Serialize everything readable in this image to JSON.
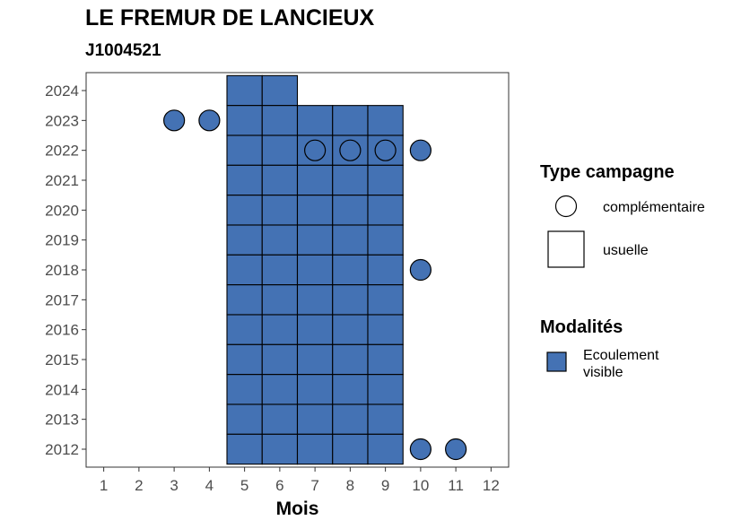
{
  "chart_data": {
    "type": "heatmap",
    "title": "LE FREMUR DE LANCIEUX",
    "subtitle": "J1004521",
    "xlabel": "Mois",
    "ylabel": "",
    "x_ticks": [
      "1",
      "2",
      "3",
      "4",
      "5",
      "6",
      "7",
      "8",
      "9",
      "10",
      "11",
      "12"
    ],
    "y_ticks": [
      "2012",
      "2013",
      "2014",
      "2015",
      "2016",
      "2017",
      "2018",
      "2019",
      "2020",
      "2021",
      "2022",
      "2023",
      "2024"
    ],
    "xlim": [
      0.5,
      12.5
    ],
    "ylim": [
      2011.4,
      2024.6
    ],
    "grid": false,
    "fill_color": "#4472B4",
    "legend_position": "right",
    "legend_type": {
      "title": "Type campagne",
      "entries": [
        "complémentaire",
        "usuelle"
      ]
    },
    "legend_modalites": {
      "title": "Modalités",
      "entries": [
        "Ecoulement visible"
      ]
    },
    "usuelle": [
      {
        "year": 2024,
        "months": [
          5,
          6
        ]
      },
      {
        "year": 2023,
        "months": [
          5,
          6,
          7,
          8,
          9
        ]
      },
      {
        "year": 2022,
        "months": [
          5,
          6,
          7,
          8,
          9
        ]
      },
      {
        "year": 2021,
        "months": [
          5,
          6,
          7,
          8,
          9
        ]
      },
      {
        "year": 2020,
        "months": [
          5,
          6,
          7,
          8,
          9
        ]
      },
      {
        "year": 2019,
        "months": [
          5,
          6,
          7,
          8,
          9
        ]
      },
      {
        "year": 2018,
        "months": [
          5,
          6,
          7,
          8,
          9
        ]
      },
      {
        "year": 2017,
        "months": [
          5,
          6,
          7,
          8,
          9
        ]
      },
      {
        "year": 2016,
        "months": [
          5,
          6,
          7,
          8,
          9
        ]
      },
      {
        "year": 2015,
        "months": [
          5,
          6,
          7,
          8,
          9
        ]
      },
      {
        "year": 2014,
        "months": [
          5,
          6,
          7,
          8,
          9
        ]
      },
      {
        "year": 2013,
        "months": [
          5,
          6,
          7,
          8,
          9
        ]
      },
      {
        "year": 2012,
        "months": [
          5,
          6,
          7,
          8,
          9
        ]
      }
    ],
    "complementaire": [
      {
        "year": 2023,
        "month": 3
      },
      {
        "year": 2023,
        "month": 4
      },
      {
        "year": 2022,
        "month": 7
      },
      {
        "year": 2022,
        "month": 8
      },
      {
        "year": 2022,
        "month": 9
      },
      {
        "year": 2022,
        "month": 10
      },
      {
        "year": 2018,
        "month": 10
      },
      {
        "year": 2012,
        "month": 10
      },
      {
        "year": 2012,
        "month": 11
      }
    ]
  }
}
